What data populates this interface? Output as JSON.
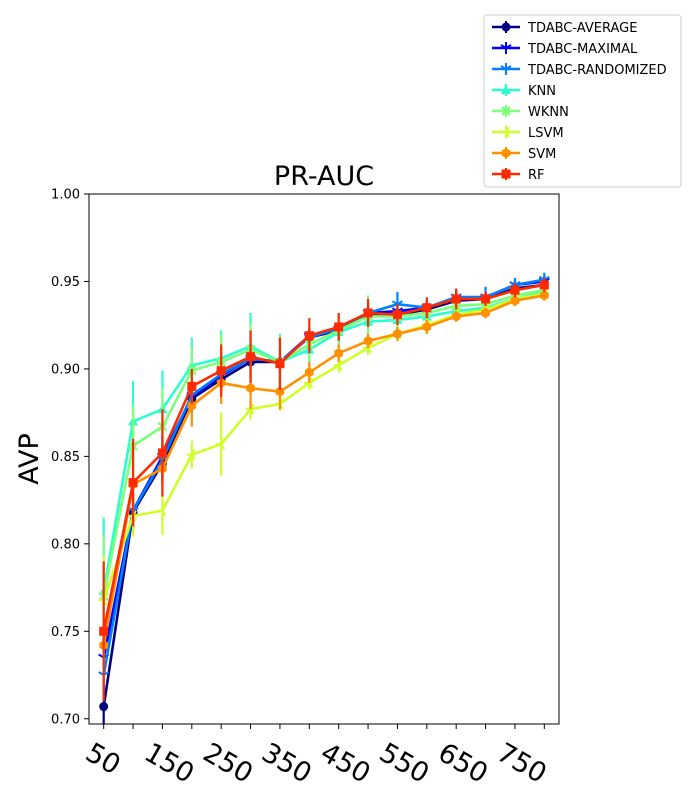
{
  "chart_data": {
    "type": "line",
    "title": "PR-AUC",
    "xlabel": "",
    "ylabel": "AVP",
    "ylim": [
      0.697,
      1.0
    ],
    "yticks": [
      0.7,
      0.75,
      0.8,
      0.85,
      0.9,
      0.95,
      1.0
    ],
    "ytick_labels": [
      "0.70",
      "0.75",
      "0.80",
      "0.85",
      "0.90",
      "0.95",
      "1.00"
    ],
    "x": [
      50,
      100,
      150,
      200,
      250,
      300,
      350,
      400,
      450,
      500,
      550,
      600,
      650,
      700,
      750,
      800
    ],
    "xtick_labels": [
      "50",
      "150",
      "250",
      "350",
      "450",
      "550",
      "650",
      "750"
    ],
    "xtick_values": [
      50,
      150,
      250,
      350,
      450,
      550,
      650,
      750
    ],
    "grid": false,
    "legend_position": "top-right (outside axes)",
    "series": [
      {
        "name": "TDABC-AVERAGE",
        "color": "#00007f",
        "marker": "circle",
        "values": [
          0.707,
          0.818,
          0.846,
          0.883,
          0.894,
          0.904,
          0.904,
          0.918,
          0.922,
          0.931,
          0.931,
          0.934,
          0.939,
          0.94,
          0.946,
          0.948
        ],
        "errors": [
          0.012,
          0.01,
          0.012,
          0.008,
          0.006,
          0.005,
          0.006,
          0.005,
          0.005,
          0.004,
          0.004,
          0.004,
          0.003,
          0.003,
          0.003,
          0.003
        ]
      },
      {
        "name": "TDABC-MAXIMAL",
        "color": "#0000ff",
        "marker": "tri_down",
        "values": [
          0.735,
          0.819,
          0.85,
          0.884,
          0.896,
          0.906,
          0.904,
          0.919,
          0.923,
          0.932,
          0.933,
          0.935,
          0.941,
          0.941,
          0.948,
          0.95
        ],
        "errors": [
          0.01,
          0.01,
          0.012,
          0.008,
          0.006,
          0.005,
          0.006,
          0.005,
          0.005,
          0.004,
          0.004,
          0.004,
          0.003,
          0.003,
          0.003,
          0.003
        ]
      },
      {
        "name": "TDABC-RANDOMIZED",
        "color": "#0080ff",
        "marker": "tri_down",
        "values": [
          0.725,
          0.819,
          0.848,
          0.885,
          0.897,
          0.906,
          0.904,
          0.918,
          0.923,
          0.932,
          0.937,
          0.935,
          0.941,
          0.941,
          0.948,
          0.951
        ],
        "errors": [
          0.01,
          0.01,
          0.012,
          0.008,
          0.006,
          0.005,
          0.006,
          0.005,
          0.005,
          0.005,
          0.007,
          0.004,
          0.004,
          0.006,
          0.004,
          0.004
        ]
      },
      {
        "name": "KNN",
        "color": "#29ffce",
        "marker": "triangle-up",
        "values": [
          0.773,
          0.87,
          0.877,
          0.902,
          0.906,
          0.913,
          0.904,
          0.911,
          0.921,
          0.927,
          0.928,
          0.93,
          0.933,
          0.935,
          0.94,
          0.944
        ],
        "errors": [
          0.042,
          0.023,
          0.022,
          0.016,
          0.016,
          0.019,
          0.016,
          0.008,
          0.007,
          0.006,
          0.006,
          0.005,
          0.005,
          0.004,
          0.004,
          0.004
        ]
      },
      {
        "name": "WKNN",
        "color": "#7dff7a",
        "marker": "x",
        "values": [
          0.77,
          0.856,
          0.867,
          0.899,
          0.904,
          0.911,
          0.904,
          0.914,
          0.922,
          0.93,
          0.93,
          0.932,
          0.936,
          0.937,
          0.942,
          0.945
        ],
        "errors": [
          0.035,
          0.023,
          0.022,
          0.014,
          0.016,
          0.015,
          0.015,
          0.01,
          0.01,
          0.012,
          0.006,
          0.005,
          0.005,
          0.004,
          0.004,
          0.004
        ]
      },
      {
        "name": "LSVM",
        "color": "#ceff29",
        "marker": "tri_left",
        "values": [
          0.768,
          0.816,
          0.819,
          0.851,
          0.857,
          0.877,
          0.88,
          0.892,
          0.902,
          0.912,
          0.92,
          0.925,
          0.931,
          0.934,
          0.94,
          0.943
        ],
        "errors": [
          0.025,
          0.012,
          0.014,
          0.008,
          0.018,
          0.006,
          0.004,
          0.004,
          0.004,
          0.004,
          0.004,
          0.004,
          0.003,
          0.003,
          0.003,
          0.003
        ]
      },
      {
        "name": "SVM",
        "color": "#ff9100",
        "marker": "hexagon",
        "values": [
          0.742,
          0.834,
          0.843,
          0.879,
          0.892,
          0.889,
          0.887,
          0.898,
          0.909,
          0.916,
          0.92,
          0.924,
          0.93,
          0.932,
          0.939,
          0.942
        ],
        "errors": [
          0.012,
          0.01,
          0.012,
          0.012,
          0.012,
          0.012,
          0.01,
          0.006,
          0.005,
          0.004,
          0.004,
          0.004,
          0.003,
          0.003,
          0.003,
          0.003
        ]
      },
      {
        "name": "RF",
        "color": "#ff2a00",
        "marker": "square",
        "values": [
          0.75,
          0.835,
          0.852,
          0.89,
          0.899,
          0.907,
          0.903,
          0.919,
          0.924,
          0.932,
          0.931,
          0.935,
          0.94,
          0.94,
          0.945,
          0.948
        ],
        "errors": [
          0.04,
          0.025,
          0.025,
          0.01,
          0.015,
          0.015,
          0.015,
          0.01,
          0.008,
          0.008,
          0.006,
          0.006,
          0.006,
          0.004,
          0.004,
          0.004
        ]
      }
    ]
  }
}
